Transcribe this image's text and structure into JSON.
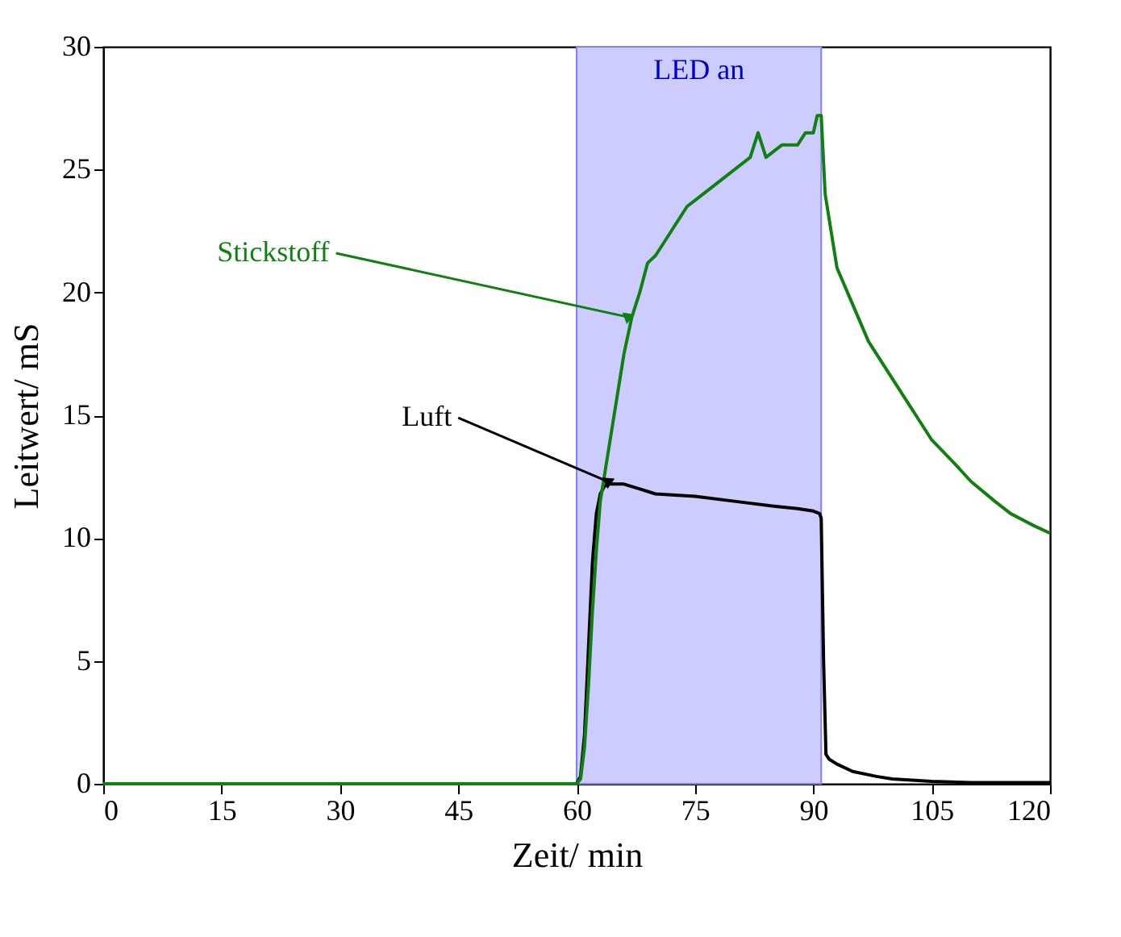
{
  "chart_data": {
    "type": "line",
    "xlabel": "Zeit/ min",
    "ylabel": "Leitwert/ mS",
    "xlim": [
      0,
      120
    ],
    "xticks": [
      0,
      15,
      30,
      45,
      60,
      75,
      90,
      105,
      120
    ],
    "ylim": [
      0,
      30
    ],
    "yticks": [
      0,
      5,
      10,
      15,
      20,
      25,
      30
    ],
    "grid": false,
    "marker": "none",
    "line_style": "solid",
    "bands": [
      {
        "axis": "x",
        "from": 60,
        "to": 91,
        "label": "LED an",
        "color": "#ccccff"
      }
    ],
    "series": [
      {
        "color": "#000000",
        "x": [
          0,
          60,
          60.5,
          61,
          61.5,
          62,
          62.5,
          63,
          63.5,
          64,
          65,
          66,
          68,
          70,
          75,
          80,
          85,
          88,
          90,
          90.8,
          91,
          91.3,
          91.6,
          92,
          93,
          95,
          98,
          100,
          105,
          110,
          120
        ],
        "values": [
          0,
          0,
          0.3,
          2,
          5.5,
          9,
          11,
          11.8,
          12.1,
          12.2,
          12.2,
          12.2,
          12,
          11.8,
          11.7,
          11.5,
          11.3,
          11.2,
          11.1,
          11,
          10.8,
          5,
          1.2,
          1,
          0.8,
          0.5,
          0.3,
          0.2,
          0.1,
          0.05,
          0.05
        ]
      },
      {
        "color": "#108010",
        "x": [
          0,
          60,
          60.5,
          61,
          61.5,
          62,
          62.5,
          63,
          64,
          65,
          66,
          67,
          68,
          69,
          70,
          72,
          74,
          76,
          78,
          80,
          82,
          83,
          84,
          86,
          88,
          89,
          90,
          90.5,
          91,
          91.5,
          92,
          93,
          95,
          97,
          100,
          103,
          105,
          108,
          110,
          113,
          115,
          118,
          120
        ],
        "values": [
          0,
          0,
          0.2,
          1.5,
          4,
          7,
          9.5,
          11.5,
          13.5,
          15.5,
          17.5,
          19,
          20,
          21.2,
          21.5,
          22.5,
          23.5,
          24,
          24.5,
          25,
          25.5,
          26.5,
          25.5,
          26,
          26,
          26.5,
          26.5,
          27.2,
          27.2,
          24,
          23,
          21,
          19.5,
          18,
          16.5,
          15,
          14,
          13,
          12.3,
          11.5,
          11,
          10.5,
          10.2
        ]
      }
    ],
    "annotations": [
      {
        "text": "Luft",
        "x": 64,
        "y": 12.3
      },
      {
        "text": "Stickstoff",
        "x": 66.5,
        "y": 19
      }
    ]
  }
}
